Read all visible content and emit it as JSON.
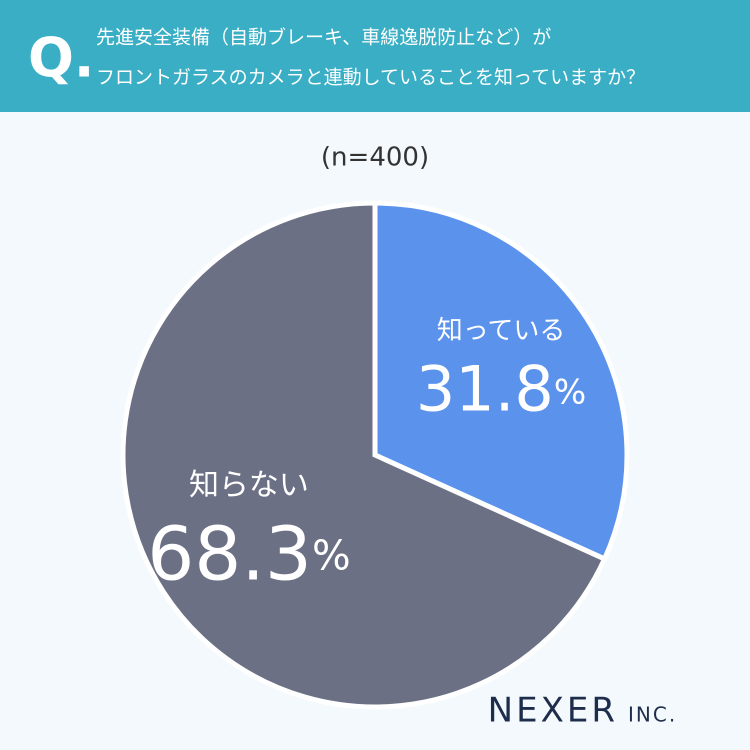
{
  "chart_data": {
    "type": "pie",
    "question_mark": "Q.",
    "title_lines": [
      "先進安全装備（自動ブレーキ、車線逸脱防止など）が",
      "フロントガラスのカメラと連動していることを知っていますか？"
    ],
    "subtitle": "(n=400)",
    "categories": [
      "知っている",
      "知らない"
    ],
    "values": [
      31.8,
      68.3
    ],
    "value_labels": [
      "31.8%",
      "68.3%"
    ],
    "colors": [
      "#5b93ec",
      "#6b7084"
    ],
    "brand_name": "NEXER",
    "brand_suffix": "INC."
  }
}
